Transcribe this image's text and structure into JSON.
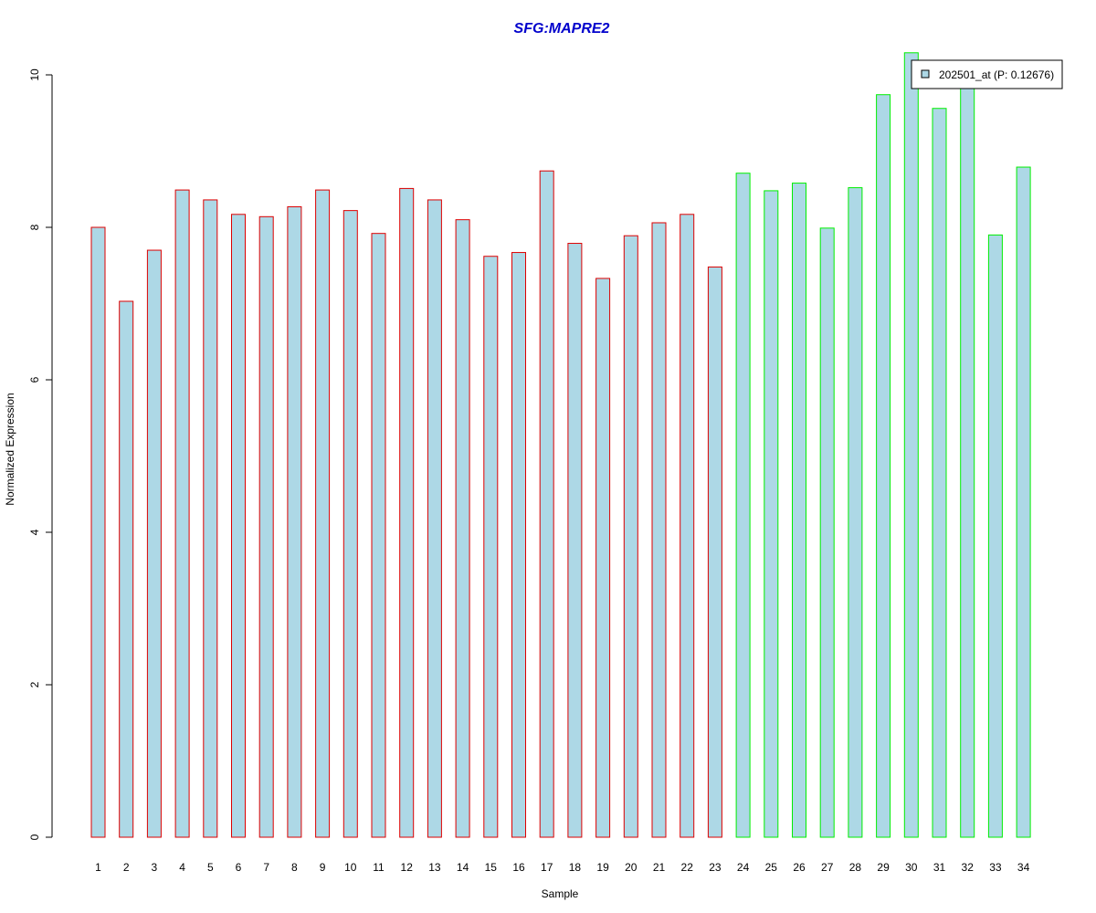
{
  "chart_data": {
    "type": "bar",
    "title": "SFG:MAPRE2",
    "xlabel": "Sample",
    "ylabel": "Normalized Expression",
    "ylim": [
      0,
      10.3
    ],
    "yticks": [
      0,
      2,
      4,
      6,
      8,
      10
    ],
    "grid": false,
    "legend_position": "top-right",
    "categories": [
      "1",
      "2",
      "3",
      "4",
      "5",
      "6",
      "7",
      "8",
      "9",
      "10",
      "11",
      "12",
      "13",
      "14",
      "15",
      "16",
      "17",
      "18",
      "19",
      "20",
      "21",
      "22",
      "23",
      "24",
      "25",
      "26",
      "27",
      "28",
      "29",
      "30",
      "31",
      "32",
      "33",
      "34"
    ],
    "series": [
      {
        "name": "202501_at (P: 0.12676)",
        "values": [
          8.0,
          7.03,
          7.7,
          8.49,
          8.36,
          8.17,
          8.14,
          8.27,
          8.49,
          8.22,
          7.92,
          8.51,
          8.36,
          8.1,
          7.62,
          7.67,
          8.74,
          7.79,
          7.33,
          7.89,
          8.06,
          8.17,
          7.48,
          8.71,
          8.48,
          8.58,
          7.99,
          8.52,
          9.74,
          10.29,
          9.56,
          9.86,
          7.9,
          8.79
        ]
      }
    ],
    "groups": [
      {
        "start": 1,
        "end": 23,
        "border_color": "#dd0000"
      },
      {
        "start": 24,
        "end": 34,
        "border_color": "#00ee00"
      }
    ]
  },
  "colors": {
    "bar_fill": "#add8e6",
    "title": "#0000cc",
    "axis": "#000000",
    "group_a_border": "#dd0000",
    "group_b_border": "#00ee00"
  }
}
